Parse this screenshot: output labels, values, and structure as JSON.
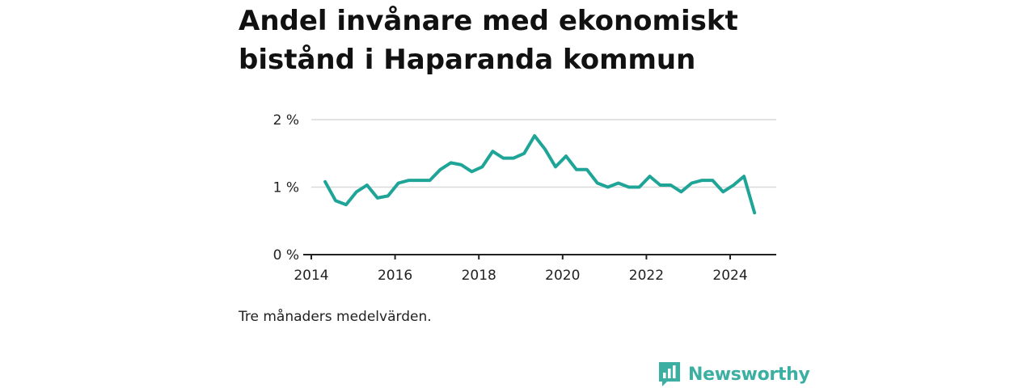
{
  "title": "Andel invånare med ekonomiskt bistånd i Haparanda kommun",
  "caption": "Tre månaders medelvärden.",
  "brand": {
    "name": "Newsworthy",
    "logo_icon": "bar-chart-speech-bubble-icon",
    "color": "#3bb0a2"
  },
  "colors": {
    "line": "#1fa597",
    "grid": "#d9d9d9",
    "axis": "#222222"
  },
  "chart_data": {
    "type": "line",
    "title": "Andel invånare med ekonomiskt bistånd i Haparanda kommun",
    "xlabel": "",
    "ylabel": "",
    "xlim": [
      2014,
      2025.1
    ],
    "ylim": [
      0,
      2
    ],
    "y_ticks": [
      {
        "value": 0,
        "label": "0 %"
      },
      {
        "value": 1,
        "label": "1 %"
      },
      {
        "value": 2,
        "label": "2 %"
      }
    ],
    "x_ticks": [
      {
        "value": 2014,
        "label": "2014"
      },
      {
        "value": 2016,
        "label": "2016"
      },
      {
        "value": 2018,
        "label": "2018"
      },
      {
        "value": 2020,
        "label": "2020"
      },
      {
        "value": 2022,
        "label": "2022"
      },
      {
        "value": 2024,
        "label": "2024"
      }
    ],
    "grid": true,
    "series": [
      {
        "x": [
          2014.33,
          2014.58,
          2014.83,
          2015.08,
          2015.33,
          2015.58,
          2015.83,
          2016.08,
          2016.33,
          2016.58,
          2016.83,
          2017.08,
          2017.33,
          2017.58,
          2017.83,
          2018.08,
          2018.33,
          2018.58,
          2018.83,
          2019.08,
          2019.33,
          2019.58,
          2019.83,
          2020.08,
          2020.33,
          2020.58,
          2020.83,
          2021.08,
          2021.33,
          2021.58,
          2021.83,
          2022.08,
          2022.33,
          2022.58,
          2022.83,
          2023.08,
          2023.33,
          2023.58,
          2023.83,
          2024.08,
          2024.33,
          2024.58
        ],
        "y": [
          1.08,
          0.8,
          0.74,
          0.93,
          1.03,
          0.84,
          0.87,
          1.06,
          1.1,
          1.1,
          1.1,
          1.26,
          1.36,
          1.33,
          1.23,
          1.3,
          1.53,
          1.43,
          1.43,
          1.5,
          1.76,
          1.56,
          1.3,
          1.46,
          1.26,
          1.26,
          1.06,
          1.0,
          1.06,
          1.0,
          1.0,
          1.16,
          1.03,
          1.03,
          0.93,
          1.06,
          1.1,
          1.1,
          0.93,
          1.03,
          1.16,
          0.62
        ]
      }
    ]
  }
}
